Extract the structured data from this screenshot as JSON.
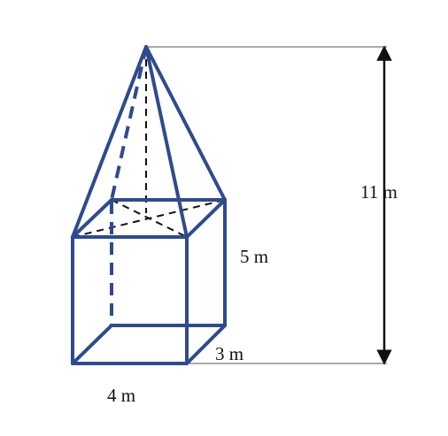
{
  "labels": {
    "total_height": "11 m",
    "prism_height": "5 m",
    "prism_depth": "3 m",
    "prism_width": "4 m"
  },
  "colors": {
    "edges": "#2f4b8c",
    "hidden_lines": "#111111",
    "dimension_lines": "#111111",
    "background": "#ffffff"
  }
}
